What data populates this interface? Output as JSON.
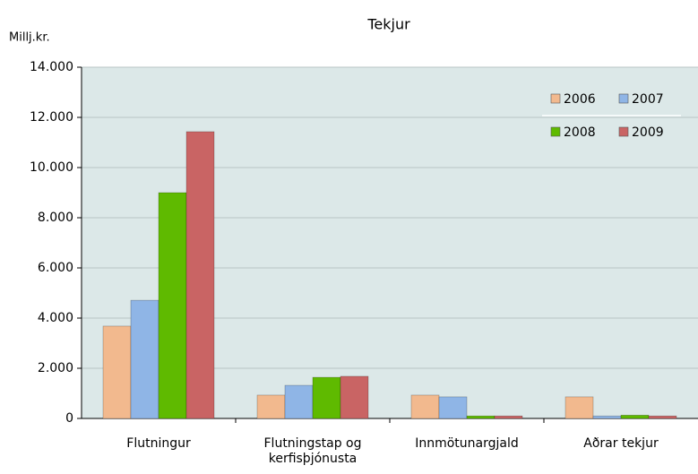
{
  "chart_data": {
    "type": "bar",
    "title": "Tekjur",
    "y_label": "Millj.kr.",
    "categories": [
      "Flutningur",
      "Flutningstap og kerfisþjónusta",
      "Innmötunargjald",
      "Aðrar tekjur"
    ],
    "series": [
      {
        "name": "2006",
        "color": "#f2b98e",
        "values": [
          3680,
          930,
          930,
          860
        ]
      },
      {
        "name": "2007",
        "color": "#8fb5e6",
        "values": [
          4710,
          1320,
          860,
          100
        ]
      },
      {
        "name": "2008",
        "color": "#5fba00",
        "values": [
          9000,
          1640,
          100,
          130
        ]
      },
      {
        "name": "2009",
        "color": "#c96464",
        "values": [
          11430,
          1680,
          100,
          100
        ]
      }
    ],
    "ylim": [
      0,
      14000
    ],
    "yticks": [
      0,
      {
        "value": 2000,
        "label": "2.000"
      },
      {
        "value": 4000,
        "label": "4.000"
      },
      {
        "value": 6000,
        "label": "6.000"
      },
      {
        "value": 8000,
        "label": "8.000"
      },
      {
        "value": 10000,
        "label": "10.000"
      },
      {
        "value": 12000,
        "label": "12.000"
      },
      {
        "value": 14000,
        "label": "14.000"
      }
    ],
    "grid": true,
    "legend_position": "top-right"
  }
}
